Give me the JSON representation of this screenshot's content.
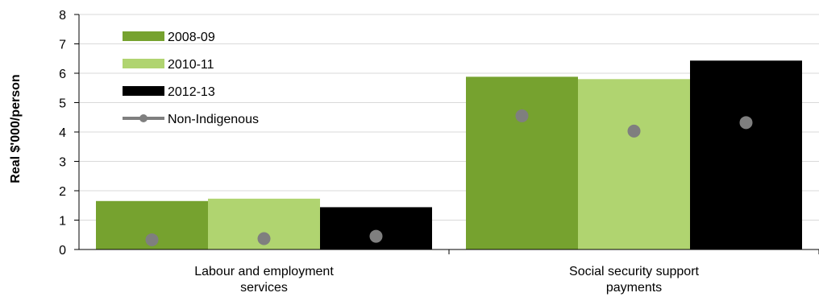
{
  "chart_data": {
    "type": "bar",
    "title": "",
    "xlabel": "",
    "ylabel": "Real $'000/person",
    "ylim": [
      0,
      8
    ],
    "yticks": [
      0,
      1,
      2,
      3,
      4,
      5,
      6,
      7,
      8
    ],
    "grid": true,
    "legend_position": "top-left",
    "categories": [
      [
        "Labour and employment",
        "services"
      ],
      [
        "Social security support",
        "payments"
      ]
    ],
    "series": [
      {
        "name": "2008-09",
        "color": "#76a22f",
        "values": [
          1.65,
          5.88
        ]
      },
      {
        "name": "2010-11",
        "color": "#b0d470",
        "values": [
          1.73,
          5.8
        ]
      },
      {
        "name": "2012-13",
        "color": "#000000",
        "values": [
          1.44,
          6.43
        ]
      }
    ],
    "overlay": {
      "name": "Non-Indigenous",
      "type": "scatter",
      "color": "#7f7f7f",
      "values": [
        [
          0.33,
          0.37,
          0.45
        ],
        [
          4.55,
          4.03,
          4.32
        ]
      ]
    }
  }
}
